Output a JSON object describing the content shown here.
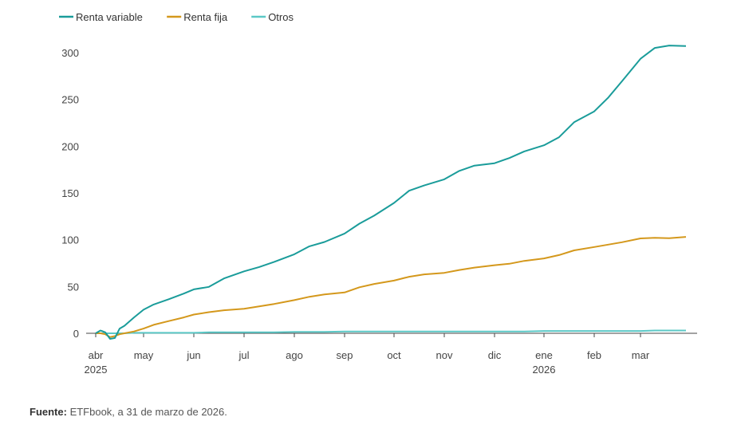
{
  "chart_data": {
    "type": "line",
    "title": "",
    "xlabel": "",
    "ylabel": "",
    "ylim": [
      0,
      310
    ],
    "yticks": [
      0,
      50,
      100,
      150,
      200,
      250,
      300
    ],
    "x_start_month_index": 0,
    "months": [
      {
        "label": "abr",
        "year": "2025"
      },
      {
        "label": "may",
        "year": ""
      },
      {
        "label": "jun",
        "year": ""
      },
      {
        "label": "jul",
        "year": ""
      },
      {
        "label": "ago",
        "year": ""
      },
      {
        "label": "sep",
        "year": ""
      },
      {
        "label": "oct",
        "year": ""
      },
      {
        "label": "nov",
        "year": ""
      },
      {
        "label": "dic",
        "year": ""
      },
      {
        "label": "ene",
        "year": "2026"
      },
      {
        "label": "feb",
        "year": ""
      },
      {
        "label": "mar",
        "year": ""
      }
    ],
    "x": [
      0,
      0.1,
      0.2,
      0.3,
      0.4,
      0.5,
      0.6,
      0.8,
      1.0,
      1.2,
      1.5,
      1.8,
      2.0,
      2.3,
      2.6,
      3.0,
      3.3,
      3.6,
      4.0,
      4.3,
      4.6,
      5.0,
      5.3,
      5.6,
      6.0,
      6.3,
      6.6,
      7.0,
      7.3,
      7.6,
      8.0,
      8.3,
      8.6,
      9.0,
      9.3,
      9.6,
      10.0,
      10.3,
      10.6,
      11.0,
      11.3,
      11.6,
      11.95
    ],
    "series": [
      {
        "name": "Renta variable",
        "color": "#1a9c9a",
        "values": [
          0,
          3,
          1,
          -6,
          -5,
          5,
          8,
          17,
          25,
          31,
          37,
          42,
          47,
          50,
          58,
          66,
          71,
          77,
          84,
          93,
          98,
          106,
          117,
          126,
          140,
          152,
          158,
          165,
          173,
          179,
          182,
          188,
          194,
          201,
          210,
          225,
          237,
          252,
          270,
          293,
          305,
          308,
          307
        ]
      },
      {
        "name": "Renta fija",
        "color": "#d4981c",
        "values": [
          0,
          0,
          -1,
          -4,
          -3,
          -1,
          0,
          2,
          5,
          9,
          13,
          17,
          20,
          23,
          24,
          26,
          29,
          32,
          35,
          39,
          42,
          43,
          49,
          53,
          57,
          60,
          63,
          65,
          67,
          70,
          73,
          75,
          77,
          80,
          84,
          88,
          92,
          95,
          98,
          101,
          102,
          102,
          103
        ]
      },
      {
        "name": "Otros",
        "color": "#5bc8c6",
        "values": [
          0,
          0,
          0,
          0,
          0,
          0,
          0,
          0.5,
          0.5,
          0.5,
          0.5,
          0.5,
          0.5,
          1,
          1,
          1,
          1,
          1,
          1.5,
          1.5,
          1.5,
          2,
          2,
          2,
          2,
          2,
          2,
          2,
          2,
          2,
          2,
          2,
          2,
          2.5,
          2.5,
          2.5,
          2.5,
          2.5,
          2.5,
          2.5,
          3,
          3,
          3
        ]
      }
    ],
    "legend_position": "top-left",
    "grid": false
  },
  "source": {
    "label": "Fuente:",
    "text": " ETFbook, a 31 de marzo de 2026."
  }
}
